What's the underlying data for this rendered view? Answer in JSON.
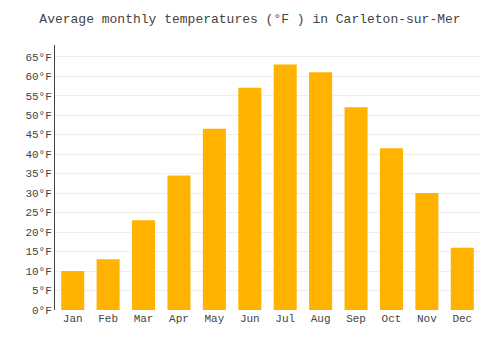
{
  "chart_data": {
    "type": "bar",
    "title": "Average monthly temperatures (°F ) in Carleton-sur-Mer",
    "categories": [
      "Jan",
      "Feb",
      "Mar",
      "Apr",
      "May",
      "Jun",
      "Jul",
      "Aug",
      "Sep",
      "Oct",
      "Nov",
      "Dec"
    ],
    "values": [
      10,
      13,
      23,
      34.5,
      46.5,
      57,
      63,
      61,
      52,
      41.5,
      30,
      16
    ],
    "color": "#FFB300",
    "ylim": [
      0,
      68
    ],
    "yticks": [
      {
        "value": 0,
        "label": "0°F"
      },
      {
        "value": 5,
        "label": "5°F"
      },
      {
        "value": 10,
        "label": "10°F"
      },
      {
        "value": 15,
        "label": "15°F"
      },
      {
        "value": 20,
        "label": "20°F"
      },
      {
        "value": 25,
        "label": "25°F"
      },
      {
        "value": 30,
        "label": "30°F"
      },
      {
        "value": 35,
        "label": "35°F"
      },
      {
        "value": 40,
        "label": "40°F"
      },
      {
        "value": 45,
        "label": "45°F"
      },
      {
        "value": 50,
        "label": "50°F"
      },
      {
        "value": 55,
        "label": "55°F"
      },
      {
        "value": 60,
        "label": "60°F"
      },
      {
        "value": 65,
        "label": "65°F"
      }
    ],
    "grid": true
  }
}
